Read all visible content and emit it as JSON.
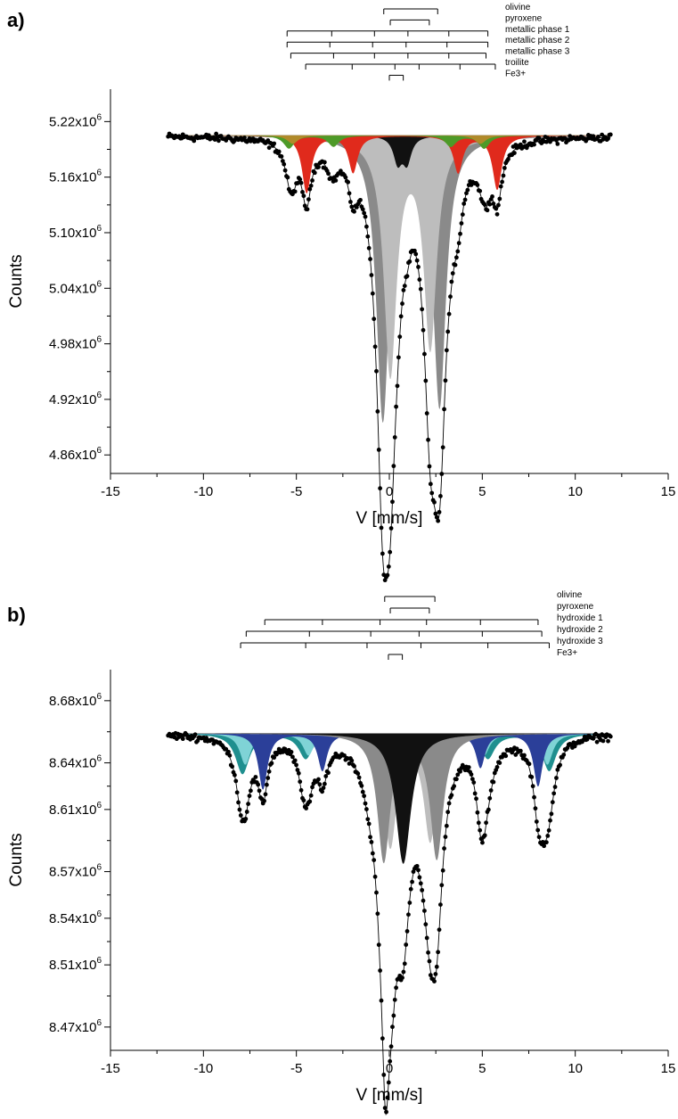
{
  "chart_data": [
    {
      "type": "scatter",
      "panel_label": "a)",
      "xlabel": "V [mm/s]",
      "ylabel": "Counts",
      "xlim": [
        -15,
        15
      ],
      "ylim": [
        4840000.0,
        5255000.0
      ],
      "x_ticks": [
        -15,
        -10,
        -5,
        0,
        5,
        10,
        15
      ],
      "x_tick_labels": [
        "-15",
        "-10",
        "-5",
        "0",
        "5",
        "10",
        "15"
      ],
      "y_ticks": [
        5220000.0,
        5160000.0,
        5100000.0,
        5040000.0,
        4980000.0,
        4920000.0,
        4860000.0
      ],
      "y_tick_labels": [
        {
          "mantissa": "5.22x10",
          "exp": "6"
        },
        {
          "mantissa": "5.16x10",
          "exp": "6"
        },
        {
          "mantissa": "5.10x10",
          "exp": "6"
        },
        {
          "mantissa": "5.04x10",
          "exp": "6"
        },
        {
          "mantissa": "4.98x10",
          "exp": "6"
        },
        {
          "mantissa": "4.92x10",
          "exp": "6"
        },
        {
          "mantissa": "4.86x10",
          "exp": "6"
        }
      ],
      "baseline": 5205000.0,
      "data_range": [
        -11.9,
        11.9
      ],
      "data_point_count": 360,
      "subspectra": [
        {
          "color": "#8a8a8a",
          "lines": [
            {
              "v": -0.35,
              "depth": 305000,
              "width": 0.42
            },
            {
              "v": 2.7,
              "depth": 290000,
              "width": 0.42
            }
          ]
        },
        {
          "color": "#bdbdbd",
          "lines": [
            {
              "v": 0.05,
              "depth": 255000,
              "width": 0.42
            },
            {
              "v": 2.2,
              "depth": 225000,
              "width": 0.42
            }
          ]
        },
        {
          "color": "#111111",
          "lines": [
            {
              "v": 0.45,
              "depth": 28000,
              "width": 0.28
            },
            {
              "v": 0.95,
              "depth": 28000,
              "width": 0.28
            }
          ]
        },
        {
          "color": "#e02a1c",
          "lines": [
            {
              "v": -4.45,
              "depth": 62000,
              "width": 0.3
            },
            {
              "v": -1.95,
              "depth": 40000,
              "width": 0.3
            },
            {
              "v": 3.7,
              "depth": 40000,
              "width": 0.3
            },
            {
              "v": 5.8,
              "depth": 58000,
              "width": 0.3
            }
          ]
        },
        {
          "color": "#4e9a28",
          "lines": [
            {
              "v": -5.4,
              "depth": 14000,
              "width": 0.35
            },
            {
              "v": -3.0,
              "depth": 12000,
              "width": 0.35
            },
            {
              "v": 3.3,
              "depth": 12000,
              "width": 0.35
            },
            {
              "v": 5.1,
              "depth": 14000,
              "width": 0.35
            }
          ]
        },
        {
          "color": "#b08a2a",
          "lines": [
            {
              "v": -5.2,
              "depth": 9000,
              "width": 0.35
            },
            {
              "v": 4.9,
              "depth": 9000,
              "width": 0.35
            }
          ]
        }
      ],
      "extra_envelope_lines": [
        {
          "v": -5.25,
          "depth": 30000,
          "width": 0.3
        },
        {
          "v": -3.1,
          "depth": 15000,
          "width": 0.35
        },
        {
          "v": 3.35,
          "depth": 10000,
          "width": 0.35
        },
        {
          "v": 5.2,
          "depth": 30000,
          "width": 0.3
        }
      ],
      "legend": [
        {
          "label": "olivine",
          "start": -0.3,
          "end": 2.6,
          "ticks": [
            -0.3,
            2.6
          ]
        },
        {
          "label": "pyroxene",
          "start": 0.05,
          "end": 2.15,
          "ticks": [
            0.05,
            2.15
          ]
        },
        {
          "label": "metallic phase 1",
          "start": -5.5,
          "end": 5.3,
          "ticks": [
            -5.5,
            -3.1,
            -0.8,
            1.0,
            3.2,
            5.3
          ]
        },
        {
          "label": "metallic phase 2",
          "start": -5.5,
          "end": 5.3,
          "ticks": [
            -5.5,
            -3.2,
            -0.9,
            0.9,
            3.1,
            5.3
          ]
        },
        {
          "label": "metallic phase 3",
          "start": -5.3,
          "end": 5.2,
          "ticks": [
            -5.3,
            -3.0,
            -0.8,
            1.0,
            3.2,
            5.2
          ]
        },
        {
          "label": "troilite",
          "start": -4.5,
          "end": 5.7,
          "ticks": [
            -4.5,
            -2.0,
            0.3,
            1.6,
            3.8,
            5.7
          ]
        },
        {
          "label": "Fe3+",
          "start": 0.0,
          "end": 0.75,
          "ticks": [
            0.0,
            0.75
          ]
        }
      ]
    },
    {
      "type": "scatter",
      "panel_label": "b)",
      "xlabel": "V [mm/s]",
      "ylabel": "Counts",
      "xlim": [
        -15,
        15
      ],
      "ylim": [
        8455000.0,
        8700000.0
      ],
      "x_ticks": [
        -15,
        -10,
        -5,
        0,
        5,
        10,
        15
      ],
      "x_tick_labels": [
        "-15",
        "-10",
        "-5",
        "0",
        "5",
        "10",
        "15"
      ],
      "y_ticks": [
        8680000.0,
        8640000.0,
        8610000.0,
        8570000.0,
        8540000.0,
        8510000.0,
        8470000.0
      ],
      "y_tick_labels": [
        {
          "mantissa": "8.68x10",
          "exp": "6"
        },
        {
          "mantissa": "8.64x10",
          "exp": "6"
        },
        {
          "mantissa": "8.61x10",
          "exp": "6"
        },
        {
          "mantissa": "8.57x10",
          "exp": "6"
        },
        {
          "mantissa": "8.54x10",
          "exp": "6"
        },
        {
          "mantissa": "8.51x10",
          "exp": "6"
        },
        {
          "mantissa": "8.47x10",
          "exp": "6"
        }
      ],
      "baseline": 8659000.0,
      "data_range": [
        -11.9,
        11.9
      ],
      "data_point_count": 360,
      "subspectra": [
        {
          "color": "#1f8f8f",
          "lines": [
            {
              "v": -7.9,
              "depth": 26000,
              "width": 0.45
            },
            {
              "v": -4.5,
              "depth": 16000,
              "width": 0.45
            },
            {
              "v": -1.15,
              "depth": 9000,
              "width": 0.45
            },
            {
              "v": 1.75,
              "depth": 9000,
              "width": 0.45
            },
            {
              "v": 5.3,
              "depth": 16000,
              "width": 0.45
            },
            {
              "v": 8.6,
              "depth": 24000,
              "width": 0.45
            }
          ]
        },
        {
          "color": "#7fd3d6",
          "lines": [
            {
              "v": -7.75,
              "depth": 20000,
              "width": 0.35
            },
            {
              "v": -4.35,
              "depth": 14000,
              "width": 0.35
            },
            {
              "v": -1.0,
              "depth": 7000,
              "width": 0.35
            },
            {
              "v": 1.6,
              "depth": 7000,
              "width": 0.35
            },
            {
              "v": 5.1,
              "depth": 14000,
              "width": 0.35
            },
            {
              "v": 8.5,
              "depth": 20000,
              "width": 0.35
            }
          ]
        },
        {
          "color": "#2b3f99",
          "lines": [
            {
              "v": -6.8,
              "depth": 36000,
              "width": 0.3
            },
            {
              "v": -3.6,
              "depth": 24000,
              "width": 0.3
            },
            {
              "v": -0.55,
              "depth": 10000,
              "width": 0.3
            },
            {
              "v": 2.0,
              "depth": 10000,
              "width": 0.3
            },
            {
              "v": 4.9,
              "depth": 22000,
              "width": 0.3
            },
            {
              "v": 8.0,
              "depth": 34000,
              "width": 0.3
            }
          ]
        },
        {
          "color": "#bdbdbd",
          "lines": [
            {
              "v": 0.05,
              "depth": 72000,
              "width": 0.42
            },
            {
              "v": 2.2,
              "depth": 68000,
              "width": 0.42
            }
          ]
        },
        {
          "color": "#8a8a8a",
          "lines": [
            {
              "v": -0.3,
              "depth": 82000,
              "width": 0.42
            },
            {
              "v": 2.55,
              "depth": 80000,
              "width": 0.42
            }
          ]
        },
        {
          "color": "#111111",
          "lines": [
            {
              "v": 0.75,
              "depth": 84000,
              "width": 0.5
            }
          ]
        }
      ],
      "extra_envelope_lines": [
        {
          "v": -8.0,
          "depth": 10000,
          "width": 0.3
        },
        {
          "v": -4.6,
          "depth": 14000,
          "width": 0.3
        },
        {
          "v": 5.0,
          "depth": 18000,
          "width": 0.3
        },
        {
          "v": 8.25,
          "depth": 20000,
          "width": 0.3
        },
        {
          "v": -0.2,
          "depth": 72000,
          "width": 0.2
        },
        {
          "v": 0.15,
          "depth": 20000,
          "width": 0.3
        },
        {
          "v": 0.7,
          "depth": 18000,
          "width": 0.3
        },
        {
          "v": 2.5,
          "depth": 12000,
          "width": 0.3
        }
      ],
      "legend": [
        {
          "label": "olivine",
          "start": -0.25,
          "end": 2.45,
          "ticks": [
            -0.25,
            2.45
          ]
        },
        {
          "label": "pyroxene",
          "start": 0.05,
          "end": 2.15,
          "ticks": [
            0.05,
            2.15
          ]
        },
        {
          "label": "hydroxide 1",
          "start": -6.7,
          "end": 8.0,
          "ticks": [
            -6.7,
            -3.6,
            -0.5,
            2.0,
            4.9,
            8.0
          ]
        },
        {
          "label": "hydroxide 2",
          "start": -7.7,
          "end": 8.2,
          "ticks": [
            -7.7,
            -4.3,
            -1.0,
            1.6,
            5.0,
            8.2
          ]
        },
        {
          "label": "hydroxide 3",
          "start": -8.0,
          "end": 8.6,
          "ticks": [
            -8.0,
            -4.5,
            -1.2,
            1.7,
            5.3,
            8.6
          ]
        },
        {
          "label": "Fe3+",
          "start": -0.05,
          "end": 0.7,
          "ticks": [
            -0.05,
            0.7
          ]
        }
      ]
    }
  ]
}
